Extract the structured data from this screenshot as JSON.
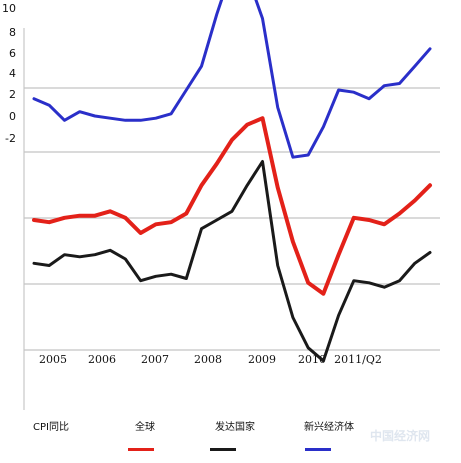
{
  "chart_data": {
    "type": "line",
    "y_tick_labels": [
      "10",
      "8",
      "6",
      "4",
      "2",
      "0",
      "-2"
    ],
    "x_tick_labels": [
      "2005",
      "2006",
      "2007",
      "2008",
      "2009",
      "2010",
      "2011/Q2"
    ],
    "grid": true,
    "legend_placement": "bottom",
    "legend_title": "CPI同比",
    "watermark": "中国经济网",
    "series": [
      {
        "name": "全球",
        "color": "#e32119",
        "values": [
          -4.0,
          -4.1,
          -3.9,
          -3.8,
          -3.8,
          -3.6,
          -3.9,
          -4.6,
          -4.2,
          -4.1,
          -3.7,
          -2.4,
          -1.4,
          -0.3,
          0.4,
          0.7,
          -2.5,
          -5.0,
          -6.9,
          -7.4,
          -5.6,
          -3.9,
          -4.0,
          -4.2,
          -3.7,
          -3.1,
          -2.4
        ]
      },
      {
        "name": "发达国家",
        "color": "#1a1a1a",
        "values": [
          -6.0,
          -6.1,
          -5.6,
          -5.7,
          -5.6,
          -5.4,
          -5.8,
          -6.8,
          -6.6,
          -6.5,
          -6.7,
          -4.4,
          -4.0,
          -3.6,
          -2.4,
          -1.3,
          -6.1,
          -8.5,
          -9.9,
          -10.5,
          -8.4,
          -6.8,
          -6.9,
          -7.1,
          -6.8,
          -6.0,
          -5.5
        ]
      },
      {
        "name": "新兴经济体",
        "color": "#2a2fc9",
        "values": [
          1.6,
          1.3,
          0.6,
          1.0,
          0.8,
          0.7,
          0.6,
          0.6,
          0.7,
          0.9,
          2.0,
          3.1,
          5.5,
          7.6,
          7.3,
          5.3,
          1.2,
          -1.1,
          -1.0,
          0.3,
          2.0,
          1.9,
          1.6,
          2.2,
          2.3,
          3.1,
          3.9
        ]
      }
    ]
  }
}
